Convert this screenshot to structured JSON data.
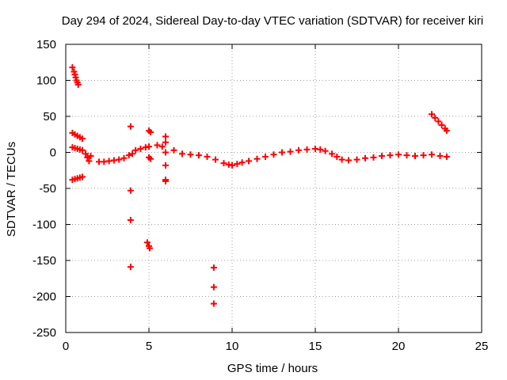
{
  "chart_data": {
    "type": "scatter",
    "title": "Day 294 of 2024, Sidereal Day-to-day VTEC variation (SDTVAR) for receiver kiri",
    "xlabel": "GPS time / hours",
    "ylabel": "SDTVAR / TECUs",
    "xlim": [
      0,
      25
    ],
    "ylim": [
      -250,
      150
    ],
    "xticks": [
      0,
      5,
      10,
      15,
      20,
      25
    ],
    "yticks": [
      -250,
      -200,
      -150,
      -100,
      -50,
      0,
      50,
      100,
      150
    ],
    "grid": true,
    "marker": "plus",
    "color": "#ff0000",
    "series": [
      {
        "name": "SDTVAR",
        "points": [
          [
            0.4,
            118
          ],
          [
            0.5,
            112
          ],
          [
            0.55,
            108
          ],
          [
            0.6,
            104
          ],
          [
            0.65,
            100
          ],
          [
            0.7,
            97
          ],
          [
            0.75,
            94
          ],
          [
            0.4,
            27
          ],
          [
            0.55,
            25
          ],
          [
            0.7,
            23
          ],
          [
            0.85,
            21
          ],
          [
            1.0,
            19
          ],
          [
            0.4,
            7
          ],
          [
            0.55,
            6
          ],
          [
            0.7,
            5
          ],
          [
            0.85,
            4
          ],
          [
            1.0,
            3
          ],
          [
            0.4,
            -38
          ],
          [
            0.55,
            -37
          ],
          [
            0.7,
            -36
          ],
          [
            0.85,
            -35
          ],
          [
            1.0,
            -34
          ],
          [
            1.2,
            -2
          ],
          [
            1.3,
            -7
          ],
          [
            1.4,
            -12
          ],
          [
            1.5,
            -5
          ],
          [
            2.0,
            -13
          ],
          [
            2.3,
            -13
          ],
          [
            2.6,
            -12
          ],
          [
            2.9,
            -11
          ],
          [
            3.2,
            -10
          ],
          [
            3.5,
            -8
          ],
          [
            3.8,
            -4
          ],
          [
            4.0,
            -2
          ],
          [
            4.2,
            3
          ],
          [
            4.5,
            5
          ],
          [
            4.8,
            7
          ],
          [
            5.0,
            8
          ],
          [
            5.0,
            30
          ],
          [
            5.1,
            28
          ],
          [
            5.0,
            -7
          ],
          [
            5.1,
            -9
          ],
          [
            3.9,
            36
          ],
          [
            3.9,
            -53
          ],
          [
            3.9,
            -94
          ],
          [
            3.9,
            -159
          ],
          [
            4.9,
            -125
          ],
          [
            5.0,
            -130
          ],
          [
            5.05,
            -133
          ],
          [
            5.5,
            10
          ],
          [
            5.8,
            8
          ],
          [
            6.0,
            22
          ],
          [
            6.0,
            14
          ],
          [
            6.0,
            0
          ],
          [
            6.0,
            -18
          ],
          [
            6.0,
            -38
          ],
          [
            6.0,
            -40
          ],
          [
            6.5,
            3
          ],
          [
            7.0,
            -2
          ],
          [
            7.5,
            -3
          ],
          [
            8.0,
            -4
          ],
          [
            8.5,
            -6
          ],
          [
            9.0,
            -10
          ],
          [
            9.5,
            -15
          ],
          [
            9.8,
            -17
          ],
          [
            10.0,
            -18
          ],
          [
            10.3,
            -16
          ],
          [
            10.6,
            -14
          ],
          [
            11.0,
            -12
          ],
          [
            11.5,
            -9
          ],
          [
            12.0,
            -6
          ],
          [
            12.5,
            -3
          ],
          [
            13.0,
            0
          ],
          [
            13.5,
            1
          ],
          [
            14.0,
            3
          ],
          [
            14.5,
            4
          ],
          [
            15.0,
            5
          ],
          [
            15.3,
            4
          ],
          [
            15.6,
            2
          ],
          [
            16.0,
            -2
          ],
          [
            16.3,
            -6
          ],
          [
            16.6,
            -10
          ],
          [
            17.0,
            -11
          ],
          [
            17.5,
            -10
          ],
          [
            18.0,
            -8
          ],
          [
            18.5,
            -7
          ],
          [
            19.0,
            -5
          ],
          [
            19.5,
            -4
          ],
          [
            20.0,
            -3
          ],
          [
            20.5,
            -4
          ],
          [
            21.0,
            -5
          ],
          [
            21.5,
            -4
          ],
          [
            22.0,
            -3
          ],
          [
            22.5,
            -5
          ],
          [
            22.9,
            -6
          ],
          [
            22.0,
            53
          ],
          [
            22.2,
            48
          ],
          [
            22.4,
            43
          ],
          [
            22.6,
            38
          ],
          [
            22.8,
            33
          ],
          [
            22.9,
            30
          ],
          [
            8.9,
            -160
          ],
          [
            8.9,
            -187
          ],
          [
            8.9,
            -210
          ]
        ]
      }
    ]
  }
}
